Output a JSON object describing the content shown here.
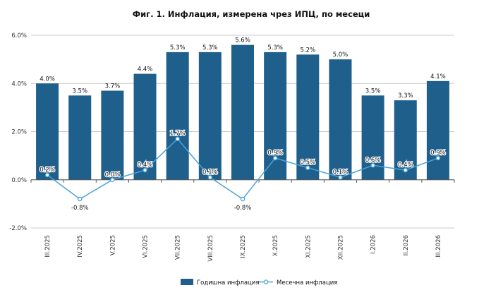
{
  "chart_data": {
    "type": "bar",
    "title": "Фиг. 1. Инфлация, измерена чрез ИПЦ, по месеци",
    "categories": [
      "III.2025",
      "IV.2025",
      "V.2025",
      "VI.2025",
      "VII.2025",
      "VIII.2025",
      "IX.2025",
      "X.2025",
      "XI.2025",
      "XII.2025",
      "I.2026",
      "II.2026",
      "III.2026"
    ],
    "series": [
      {
        "name": "Годишна инфлация",
        "type": "bar",
        "color": "#1f5f8b",
        "values": [
          4.0,
          3.5,
          3.7,
          4.4,
          5.3,
          5.3,
          5.6,
          5.3,
          5.2,
          5.0,
          3.5,
          3.3,
          4.1
        ],
        "labels": [
          "4.0%",
          "3.5%",
          "3.7%",
          "4.4%",
          "5.3%",
          "5.3%",
          "5.6%",
          "5.3%",
          "5.2%",
          "5.0%",
          "3.5%",
          "3.3%",
          "4.1%"
        ]
      },
      {
        "name": "Месечна инфлация",
        "type": "line",
        "color": "#4aa3d8",
        "values": [
          0.2,
          -0.8,
          0.0,
          0.4,
          1.7,
          0.1,
          -0.8,
          0.9,
          0.5,
          0.1,
          0.6,
          0.4,
          0.9
        ],
        "labels": [
          "0.2%",
          "-0.8%",
          "0.0%",
          "0.4%",
          "1.7%",
          "0.1%",
          "-0.8%",
          "0.9%",
          "0.5%",
          "0.1%",
          "0.6%",
          "0.4%",
          "0.9%"
        ]
      }
    ],
    "ylim": [
      -2.0,
      6.0
    ],
    "yticks": [
      "6.0%",
      "4.0%",
      "2.0%",
      "0.0%",
      "-2.0%"
    ],
    "ytick_values": [
      6.0,
      4.0,
      2.0,
      0.0,
      -2.0
    ],
    "grid": true,
    "legend": "bottom-center",
    "xlabel": "",
    "ylabel": ""
  }
}
